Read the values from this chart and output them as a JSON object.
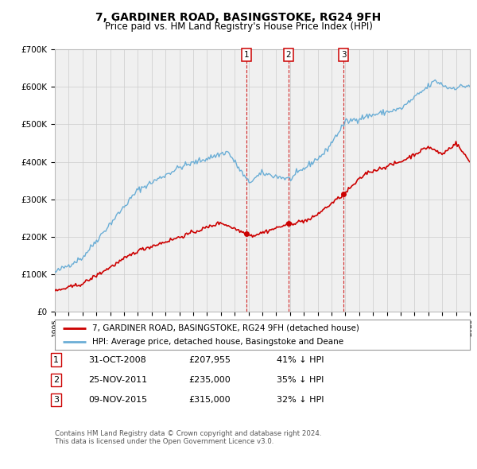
{
  "title": "7, GARDINER ROAD, BASINGSTOKE, RG24 9FH",
  "subtitle": "Price paid vs. HM Land Registry's House Price Index (HPI)",
  "hpi_label": "HPI: Average price, detached house, Basingstoke and Deane",
  "property_label": "7, GARDINER ROAD, BASINGSTOKE, RG24 9FH (detached house)",
  "footer1": "Contains HM Land Registry data © Crown copyright and database right 2024.",
  "footer2": "This data is licensed under the Open Government Licence v3.0.",
  "transactions": [
    {
      "num": 1,
      "date": "31-OCT-2008",
      "price": "£207,955",
      "pct": "41% ↓ HPI",
      "year": 2008.83
    },
    {
      "num": 2,
      "date": "25-NOV-2011",
      "price": "£235,000",
      "pct": "35% ↓ HPI",
      "year": 2011.9
    },
    {
      "num": 3,
      "date": "09-NOV-2015",
      "price": "£315,000",
      "pct": "32% ↓ HPI",
      "year": 2015.87
    }
  ],
  "transaction_prices": [
    207955,
    235000,
    315000
  ],
  "ylim": [
    0,
    700000
  ],
  "yticks": [
    0,
    100000,
    200000,
    300000,
    400000,
    500000,
    600000,
    700000
  ],
  "ytick_labels": [
    "£0",
    "£100K",
    "£200K",
    "£300K",
    "£400K",
    "£500K",
    "£600K",
    "£700K"
  ],
  "hpi_color": "#6baed6",
  "property_color": "#cc0000",
  "vline_color": "#cc0000",
  "bg_color": "#ffffff",
  "plot_bg_color": "#f0f0f0"
}
